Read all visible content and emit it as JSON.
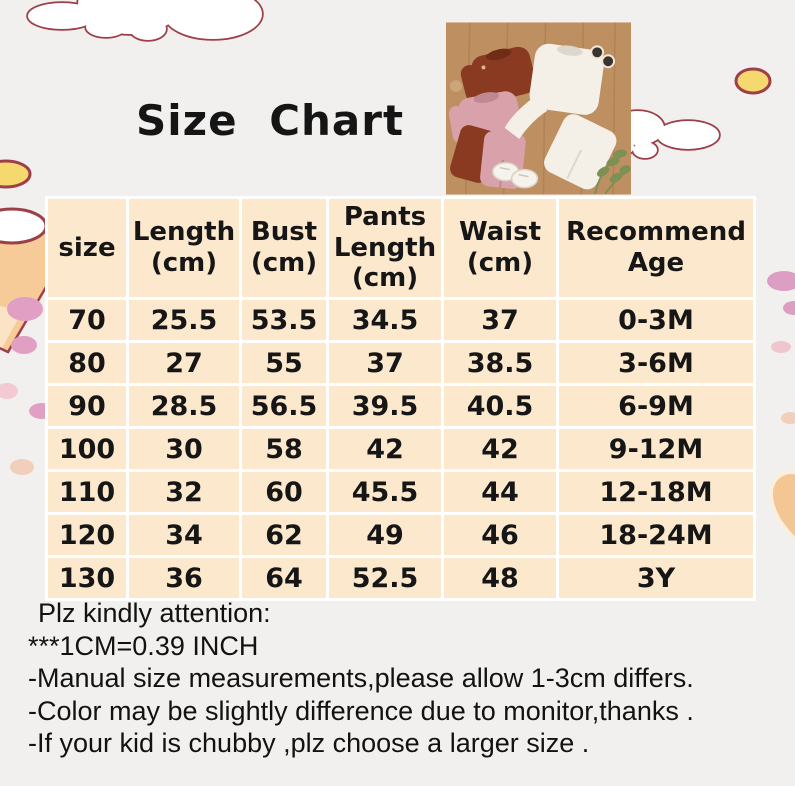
{
  "page": {
    "title": "Size Chart"
  },
  "table": {
    "headers": [
      "size",
      "Length\n(cm)",
      "Bust\n(cm)",
      "Pants\nLength\n(cm)",
      "Waist\n(cm)",
      "Recommend\nAge"
    ],
    "rows": [
      [
        "70",
        "25.5",
        "53.5",
        "34.5",
        "37",
        "0-3M"
      ],
      [
        "80",
        "27",
        "55",
        "37",
        "38.5",
        "3-6M"
      ],
      [
        "90",
        "28.5",
        "56.5",
        "39.5",
        "40.5",
        "6-9M"
      ],
      [
        "100",
        "30",
        "58",
        "42",
        "42",
        "9-12M"
      ],
      [
        "110",
        "32",
        "60",
        "45.5",
        "44",
        "12-18M"
      ],
      [
        "120",
        "34",
        "62",
        "49",
        "46",
        "18-24M"
      ],
      [
        "130",
        "36",
        "64",
        "52.5",
        "48",
        "3Y"
      ]
    ]
  },
  "notes": {
    "lines": [
      "Plz kindly attention:",
      "***1CM=0.39 INCH",
      "-Manual size measurements,please allow 1-3cm differs.",
      "-Color may be slightly difference due to monitor,thanks .",
      "-If your kid is chubby ,plz choose a larger size ."
    ]
  },
  "colors": {
    "background": "#f1f0ee",
    "table_cell": "#fbe8cd",
    "grid_line": "#ffffff",
    "text": "#161616",
    "outline_maroon": "#9d3f48",
    "sun_yellow": "#f6d96e",
    "dot_pink": "#e29fc4",
    "dot_light_pink": "#f3c9d2",
    "dot_peach": "#f2cebc",
    "heart_orange": "#f4c693",
    "wood": "#bd8f61",
    "rust_knit": "#8a3a20",
    "pink_knit": "#d9a2aa",
    "white_knit": "#f4f0e8",
    "leaf_green": "#7d9154"
  }
}
